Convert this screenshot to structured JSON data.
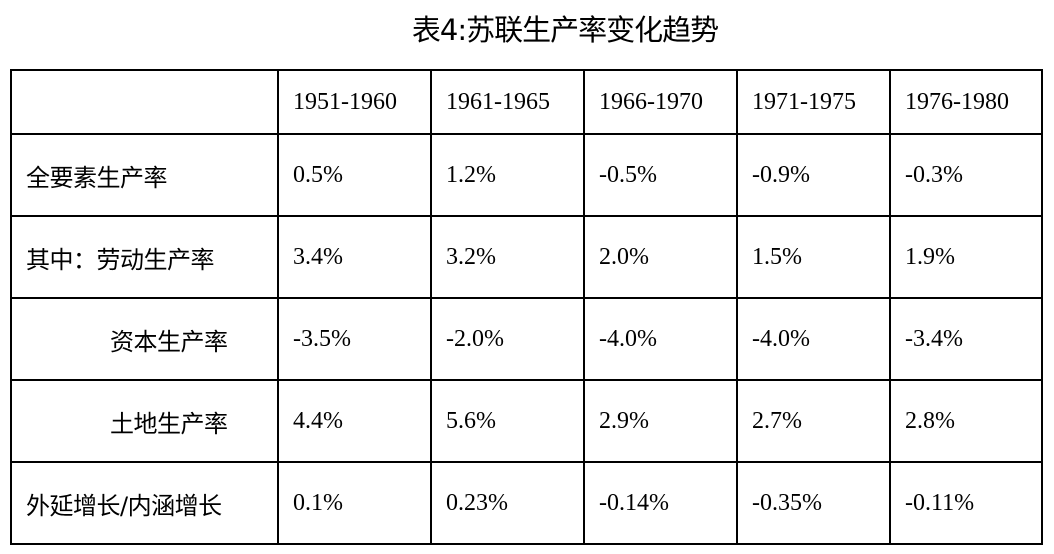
{
  "title": "表4:苏联生产率变化趋势",
  "table": {
    "columns": [
      "1951-1960",
      "1961-1965",
      "1966-1970",
      "1971-1975",
      "1976-1980"
    ],
    "rows": [
      {
        "label": "全要素生产率",
        "values": [
          "0.5%",
          "1.2%",
          "-0.5%",
          "-0.9%",
          "-0.3%"
        ]
      },
      {
        "label": "其中：劳动生产率",
        "values": [
          "3.4%",
          "3.2%",
          "2.0%",
          "1.5%",
          "1.9%"
        ]
      },
      {
        "label": "资本生产率",
        "values": [
          "-3.5%",
          "-2.0%",
          "-4.0%",
          "-4.0%",
          "-3.4%"
        ]
      },
      {
        "label": "土地生产率",
        "values": [
          "4.4%",
          "5.6%",
          "2.9%",
          "2.7%",
          "2.8%"
        ]
      },
      {
        "label": "外延增长/内涵增长",
        "values": [
          "0.1%",
          "0.23%",
          "-0.14%",
          "-0.35%",
          "-0.11%"
        ]
      }
    ]
  }
}
